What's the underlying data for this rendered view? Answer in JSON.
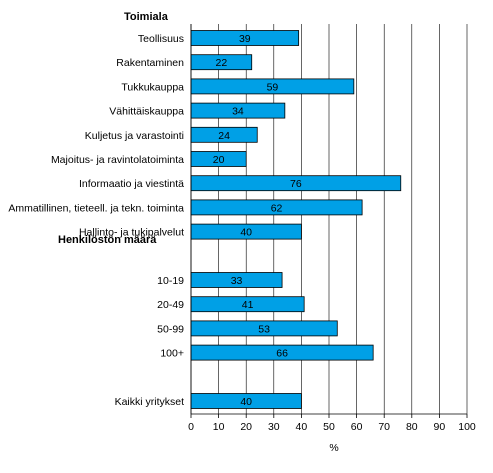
{
  "chart_data": {
    "type": "bar",
    "orientation": "horizontal",
    "xlabel": "%",
    "xlim": [
      0,
      100
    ],
    "x_ticks": [
      "0",
      "10",
      "20",
      "30",
      "40",
      "50",
      "60",
      "70",
      "80",
      "90",
      "100"
    ],
    "grid": true,
    "bar_color": "#00a0e6",
    "groups": [
      {
        "title": "Toimiala",
        "categories": [
          "Teollisuus",
          "Rakentaminen",
          "Tukkukauppa",
          "Vähittäiskauppa",
          "Kuljetus ja varastointi",
          "Majoitus- ja ravintolatoiminta",
          "Informaatio ja viestintä",
          "Ammatillinen, tieteell. ja tekn. toiminta",
          "Hallinto- ja tukipalvelut"
        ],
        "values": [
          39,
          22,
          59,
          34,
          24,
          20,
          76,
          62,
          40
        ]
      },
      {
        "title": "Henkilöstön määrä",
        "categories": [
          "10-19",
          "20-49",
          "50-99",
          "100+"
        ],
        "values": [
          33,
          41,
          53,
          66
        ]
      },
      {
        "title": "",
        "categories": [
          "Kaikki yritykset"
        ],
        "values": [
          40
        ]
      }
    ]
  }
}
